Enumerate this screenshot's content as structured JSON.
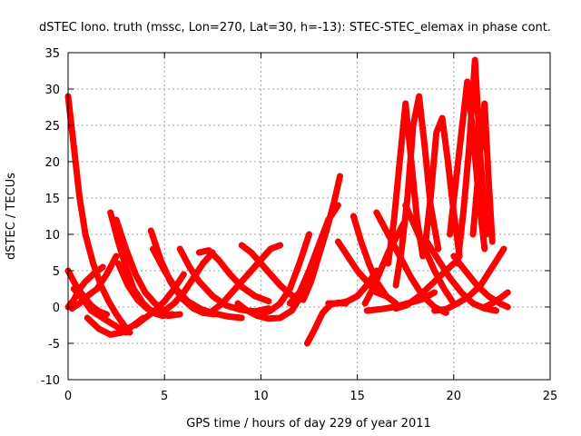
{
  "chart_data": {
    "type": "scatter",
    "title": "dSTEC Iono. truth (mssc, Lon=270, Lat=30, h=-13): STEC-STEC_elemax in phase cont.",
    "xlabel": "GPS time / hours of day 229 of year 2011",
    "ylabel": "dSTEC  / TECUs",
    "xlim": [
      0,
      25
    ],
    "ylim": [
      -10,
      35
    ],
    "xticks": [
      0,
      5,
      10,
      15,
      20,
      25
    ],
    "yticks": [
      -10,
      -5,
      0,
      5,
      10,
      15,
      20,
      25,
      30,
      35
    ],
    "grid": true,
    "marker": "+",
    "color": "#ff0000",
    "series": [
      {
        "x": [
          0.0,
          0.3,
          0.6,
          0.9,
          1.3,
          1.7,
          2.1,
          2.5,
          2.9,
          3.2
        ],
        "y": [
          29,
          22,
          15,
          10,
          6,
          3,
          0.8,
          -1,
          -2.5,
          -3.5
        ]
      },
      {
        "x": [
          0.0,
          0.4,
          0.8,
          1.2,
          1.6,
          2.0
        ],
        "y": [
          5,
          3,
          1.5,
          0.2,
          -0.6,
          -1
        ]
      },
      {
        "x": [
          0.0,
          0.3,
          0.6,
          0.9,
          1.3,
          1.8
        ],
        "y": [
          0,
          1,
          2.5,
          3.5,
          4.5,
          5.5
        ]
      },
      {
        "x": [
          0.2,
          0.6,
          1.0,
          1.5,
          2.0,
          2.5
        ],
        "y": [
          -0.2,
          0.5,
          1.5,
          2.5,
          4.5,
          7
        ]
      },
      {
        "x": [
          0.3,
          0.8,
          1.2,
          1.8,
          2.4,
          3.0
        ],
        "y": [
          2.5,
          1,
          -0.5,
          -1.5,
          -2.5,
          -3.5
        ]
      },
      {
        "x": [
          2.2,
          2.6,
          3.0,
          3.4,
          3.9,
          4.4,
          4.9,
          5.4
        ],
        "y": [
          13,
          9,
          5.5,
          2.5,
          0.5,
          -0.8,
          -1.2,
          -1
        ]
      },
      {
        "x": [
          1.0,
          1.6,
          2.2,
          2.8,
          3.4,
          3.9
        ],
        "y": [
          -1.5,
          -3,
          -3.8,
          -3.5,
          -2.5,
          -1.5
        ]
      },
      {
        "x": [
          2.5,
          3.0,
          3.5,
          4.0,
          4.5,
          5.0
        ],
        "y": [
          12,
          8,
          4.5,
          2,
          0.5,
          -0.5
        ]
      },
      {
        "x": [
          2.6,
          3.1,
          3.6,
          4.1,
          4.6,
          5.2,
          5.8
        ],
        "y": [
          6,
          3,
          1,
          -0.2,
          -0.8,
          -1.2,
          -1
        ]
      },
      {
        "x": [
          4.3,
          4.8,
          5.3,
          5.9,
          6.5,
          7.0,
          7.6
        ],
        "y": [
          10.5,
          6.5,
          3.5,
          1.2,
          -0.2,
          -0.8,
          -1
        ]
      },
      {
        "x": [
          4.4,
          5.0,
          5.6,
          6.2,
          6.9,
          7.6,
          8.3,
          9.0
        ],
        "y": [
          8,
          5,
          2.5,
          0.8,
          -0.3,
          -0.9,
          -1.3,
          -1.5
        ]
      },
      {
        "x": [
          3.5,
          4.0,
          4.5,
          5.0,
          5.5,
          6.0
        ],
        "y": [
          -2.5,
          -1.5,
          -0.5,
          0.8,
          2.5,
          4.5
        ]
      },
      {
        "x": [
          5.0,
          5.5,
          6.0,
          6.5,
          7.0,
          7.5
        ],
        "y": [
          -0.5,
          0.5,
          2,
          4,
          6,
          7.5
        ]
      },
      {
        "x": [
          5.8,
          6.3,
          6.8,
          7.5,
          8.2,
          9.0,
          9.7,
          10.4
        ],
        "y": [
          8,
          5.5,
          3.5,
          1.5,
          0.2,
          -0.4,
          -0.6,
          -0.2
        ]
      },
      {
        "x": [
          6.8,
          7.3,
          7.8,
          8.4,
          9.0,
          9.7,
          10.4
        ],
        "y": [
          7.5,
          7.8,
          6.5,
          4.5,
          2.8,
          1.5,
          0.8
        ]
      },
      {
        "x": [
          7.5,
          8.0,
          8.5,
          9.0,
          9.5,
          10.0,
          10.5,
          11.0
        ],
        "y": [
          -0.5,
          0.5,
          2,
          3.5,
          5,
          6.5,
          8,
          8.5
        ]
      },
      {
        "x": [
          9.0,
          9.5,
          10.0,
          10.5,
          11.0,
          11.5,
          12.0
        ],
        "y": [
          8.5,
          7.5,
          6,
          4.5,
          3,
          1.8,
          1
        ]
      },
      {
        "x": [
          8.8,
          9.3,
          9.8,
          10.4,
          11.0,
          11.6,
          12.2,
          12.7
        ],
        "y": [
          0.5,
          -0.5,
          -1.2,
          -1.6,
          -1.5,
          -0.5,
          2,
          5
        ]
      },
      {
        "x": [
          10.0,
          10.5,
          11.0,
          11.5,
          12.0,
          12.5
        ],
        "y": [
          -1,
          -0.5,
          0.5,
          2.5,
          6,
          10
        ]
      },
      {
        "x": [
          12.2,
          12.6,
          13.0,
          13.4,
          13.8,
          14.1
        ],
        "y": [
          1,
          3.5,
          7,
          10.5,
          14.5,
          18
        ]
      },
      {
        "x": [
          12.4,
          12.8,
          13.2,
          13.6,
          14.0,
          14.4
        ],
        "y": [
          -5,
          -3,
          -0.8,
          0.3,
          0.6,
          0.5
        ]
      },
      {
        "x": [
          11.5,
          12.0,
          12.5,
          13.0,
          13.5,
          14.0
        ],
        "y": [
          0.5,
          2,
          5,
          8.5,
          12,
          14
        ]
      },
      {
        "x": [
          13.5,
          14.0,
          14.5,
          15.0,
          15.5,
          16.0
        ],
        "y": [
          0.5,
          0.5,
          0.8,
          1.5,
          3,
          5
        ]
      },
      {
        "x": [
          14.0,
          14.5,
          15.0,
          15.5,
          16.0,
          16.5
        ],
        "y": [
          9,
          7,
          5,
          3.5,
          2,
          1.5
        ]
      },
      {
        "x": [
          14.8,
          15.2,
          15.6,
          16.0,
          16.5,
          17.0
        ],
        "y": [
          12.5,
          9,
          6,
          3.5,
          1.5,
          0.5
        ]
      },
      {
        "x": [
          15.4,
          15.8,
          16.2,
          16.6,
          17.0,
          17.4
        ],
        "y": [
          0.5,
          2.5,
          5,
          7.5,
          9.5,
          11.5
        ]
      },
      {
        "x": [
          16.6,
          16.9,
          17.2,
          17.5,
          17.8,
          18.1,
          18.4
        ],
        "y": [
          6,
          12,
          20,
          28,
          20,
          12,
          7
        ]
      },
      {
        "x": [
          17.0,
          17.3,
          17.6,
          17.9,
          18.2,
          18.5,
          18.8,
          19.2
        ],
        "y": [
          3,
          8,
          15,
          25,
          29,
          22,
          14,
          8
        ]
      },
      {
        "x": [
          18.5,
          18.8,
          19.1,
          19.4,
          19.7,
          20.0,
          20.3
        ],
        "y": [
          8,
          15,
          24,
          26,
          20,
          13,
          7
        ]
      },
      {
        "x": [
          19.8,
          20.1,
          20.4,
          20.7,
          21.0,
          21.3,
          21.6
        ],
        "y": [
          10,
          17,
          24,
          31,
          24,
          15,
          8
        ]
      },
      {
        "x": [
          20.2,
          20.5,
          20.8,
          21.1,
          21.4,
          21.7
        ],
        "y": [
          6,
          13,
          22,
          34,
          20,
          10
        ]
      },
      {
        "x": [
          21.0,
          21.2,
          21.4,
          21.6,
          21.8,
          22.0
        ],
        "y": [
          10,
          16,
          22,
          28,
          18,
          9
        ]
      },
      {
        "x": [
          16.0,
          16.6,
          17.2,
          17.8,
          18.4,
          19.0,
          19.6
        ],
        "y": [
          13,
          10,
          7,
          4,
          1.5,
          0,
          -0.8
        ]
      },
      {
        "x": [
          17.5,
          18.0,
          18.5,
          19.0,
          19.5,
          20.0
        ],
        "y": [
          14,
          11,
          8,
          5,
          2.5,
          0.5
        ]
      },
      {
        "x": [
          18.6,
          19.2,
          19.8,
          20.4,
          21.0,
          21.6,
          22.2
        ],
        "y": [
          9,
          6.5,
          4,
          2,
          0.5,
          -0.2,
          -0.5
        ]
      },
      {
        "x": [
          20.0,
          20.6,
          21.2,
          21.8,
          22.4,
          22.8
        ],
        "y": [
          7,
          5,
          3,
          1.5,
          0.5,
          0
        ]
      },
      {
        "x": [
          19.0,
          19.6,
          20.2,
          20.8,
          21.4,
          22.0,
          22.6
        ],
        "y": [
          -0.5,
          -0.3,
          0.5,
          1.5,
          3,
          5.5,
          8
        ]
      },
      {
        "x": [
          21.6,
          22.0,
          22.4,
          22.8
        ],
        "y": [
          0,
          0.5,
          1.2,
          2
        ]
      },
      {
        "x": [
          15.5,
          16.2,
          16.9,
          17.6,
          18.3,
          19.0
        ],
        "y": [
          -0.5,
          -0.3,
          0,
          0.5,
          1,
          2
        ]
      },
      {
        "x": [
          17.0,
          17.6,
          18.2,
          18.8,
          19.4,
          20.0
        ],
        "y": [
          -0.2,
          0.3,
          1.5,
          3,
          4.5,
          6
        ]
      }
    ]
  }
}
